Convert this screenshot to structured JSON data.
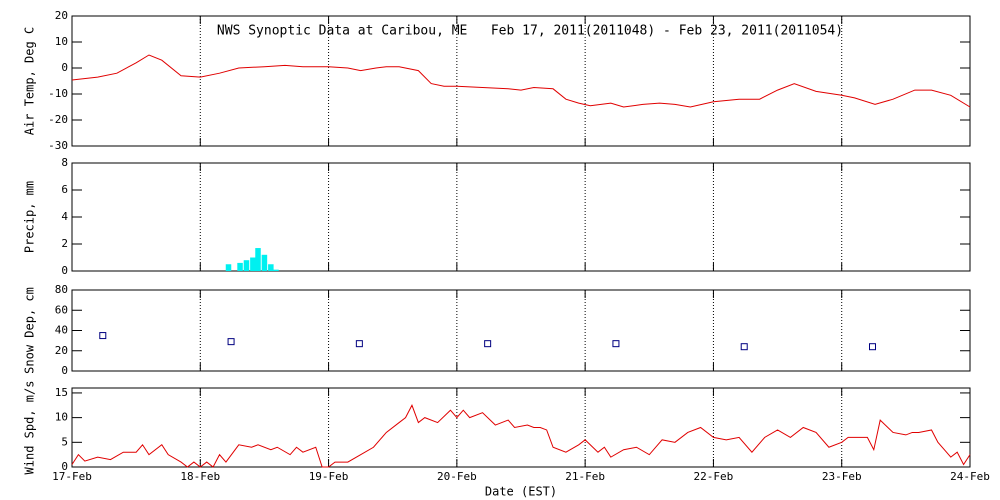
{
  "chart_data": [
    {
      "type": "line",
      "title": "NWS Synoptic Data at Caribou, ME   Feb 17, 2011(2011048) - Feb 23, 2011(2011054)",
      "ylabel": "Air Temp, Deg C",
      "xlim": [
        0,
        7
      ],
      "ylim": [
        -30,
        20
      ],
      "yticks": [
        -30,
        -20,
        -10,
        0,
        10,
        20
      ],
      "grid": true,
      "series": [
        {
          "color": "#e00000",
          "x": [
            0,
            0.2,
            0.35,
            0.5,
            0.6,
            0.7,
            0.85,
            1.0,
            1.15,
            1.3,
            1.5,
            1.66,
            1.8,
            2.0,
            2.15,
            2.25,
            2.37,
            2.45,
            2.55,
            2.7,
            2.8,
            2.9,
            3.0,
            3.2,
            3.4,
            3.5,
            3.6,
            3.75,
            3.85,
            3.95,
            4.04,
            4.2,
            4.3,
            4.45,
            4.58,
            4.7,
            4.82,
            5.0,
            5.2,
            5.36,
            5.5,
            5.63,
            5.8,
            6.0,
            6.1,
            6.26,
            6.4,
            6.57,
            6.7,
            6.85,
            7.0
          ],
          "values": [
            -4.6,
            -3.5,
            -2,
            2,
            5,
            3,
            -3,
            -3.5,
            -2,
            0,
            0.5,
            1,
            0.5,
            0.5,
            0,
            -1,
            0,
            0.5,
            0.5,
            -1,
            -6,
            -7,
            -7,
            -7.5,
            -8,
            -8.5,
            -7.5,
            -8,
            -12,
            -13.5,
            -14.5,
            -13.5,
            -15,
            -14,
            -13.5,
            -14,
            -15,
            -13,
            -12,
            -12,
            -8.5,
            -6,
            -9,
            -10.5,
            -11.5,
            -14,
            -12,
            -8.5,
            -8.5,
            -10.5,
            -15
          ]
        }
      ]
    },
    {
      "type": "bar",
      "ylabel": "Precip, mm",
      "xlim": [
        0,
        7
      ],
      "ylim": [
        0,
        8
      ],
      "yticks": [
        0,
        2,
        4,
        6,
        8
      ],
      "grid": true,
      "series": [
        {
          "color": "#00f0f0",
          "x": [
            1.22,
            1.31,
            1.36,
            1.41,
            1.45,
            1.5,
            1.55,
            1.59
          ],
          "values": [
            0.5,
            0.6,
            0.8,
            1.0,
            1.7,
            1.2,
            0.5,
            0.1
          ]
        }
      ]
    },
    {
      "type": "scatter",
      "ylabel": "Snow Dep, cm",
      "xlim": [
        0,
        7
      ],
      "ylim": [
        0,
        80
      ],
      "yticks": [
        0,
        20,
        40,
        60,
        80
      ],
      "grid": true,
      "series": [
        {
          "color": "#000080",
          "x": [
            0.24,
            1.24,
            2.24,
            3.24,
            4.24,
            5.24,
            6.24
          ],
          "values": [
            35,
            29,
            27,
            27,
            27,
            24,
            24
          ]
        }
      ]
    },
    {
      "type": "line",
      "ylabel": "Wind Spd, m/s",
      "xlabel": "Date (EST)",
      "xlim": [
        0,
        7
      ],
      "ylim": [
        0,
        16
      ],
      "yticks": [
        0,
        5,
        10,
        15
      ],
      "grid": true,
      "xticks": [
        {
          "value": 0,
          "label": "17-Feb"
        },
        {
          "value": 1,
          "label": "18-Feb"
        },
        {
          "value": 2,
          "label": "19-Feb"
        },
        {
          "value": 3,
          "label": "20-Feb"
        },
        {
          "value": 4,
          "label": "21-Feb"
        },
        {
          "value": 5,
          "label": "22-Feb"
        },
        {
          "value": 6,
          "label": "23-Feb"
        },
        {
          "value": 7,
          "label": "24-Feb"
        }
      ],
      "series": [
        {
          "color": "#e00000",
          "x": [
            0,
            0.05,
            0.1,
            0.2,
            0.3,
            0.4,
            0.5,
            0.55,
            0.6,
            0.7,
            0.75,
            0.85,
            0.9,
            0.95,
            1.0,
            1.05,
            1.1,
            1.15,
            1.2,
            1.3,
            1.4,
            1.45,
            1.55,
            1.6,
            1.7,
            1.75,
            1.8,
            1.9,
            1.95,
            2.0,
            2.05,
            2.15,
            2.25,
            2.35,
            2.45,
            2.55,
            2.6,
            2.65,
            2.7,
            2.75,
            2.85,
            2.95,
            3.0,
            3.05,
            3.1,
            3.2,
            3.3,
            3.4,
            3.45,
            3.55,
            3.6,
            3.65,
            3.7,
            3.75,
            3.85,
            3.95,
            4.0,
            4.1,
            4.15,
            4.2,
            4.3,
            4.4,
            4.5,
            4.6,
            4.7,
            4.8,
            4.9,
            5.0,
            5.1,
            5.2,
            5.3,
            5.4,
            5.5,
            5.6,
            5.7,
            5.8,
            5.9,
            6.0,
            6.05,
            6.2,
            6.25,
            6.3,
            6.4,
            6.5,
            6.55,
            6.6,
            6.7,
            6.75,
            6.8,
            6.85,
            6.9,
            6.95,
            7.0
          ],
          "values": [
            0.5,
            2.5,
            1.2,
            2,
            1.5,
            3,
            3,
            4.5,
            2.5,
            4.5,
            2.5,
            1,
            0,
            1,
            0,
            1,
            0,
            2.5,
            1,
            4.5,
            4,
            4.5,
            3.5,
            4,
            2.5,
            4,
            3,
            4,
            0,
            0,
            1,
            1,
            2.5,
            4,
            7,
            9,
            10,
            12.5,
            9,
            10,
            9,
            11.5,
            10,
            11.5,
            10,
            11,
            8.5,
            9.5,
            8,
            8.5,
            8,
            8,
            7.5,
            4,
            3,
            4.5,
            5.5,
            3,
            4,
            2,
            3.5,
            4,
            2.5,
            5.5,
            5,
            7,
            8,
            6,
            5.5,
            6,
            3,
            6,
            7.5,
            6,
            8,
            7,
            4,
            5,
            6,
            6,
            3.5,
            9.5,
            7,
            6.5,
            7,
            7,
            7.5,
            5,
            3.5,
            2,
            3,
            0.5,
            2.5
          ]
        }
      ]
    }
  ]
}
